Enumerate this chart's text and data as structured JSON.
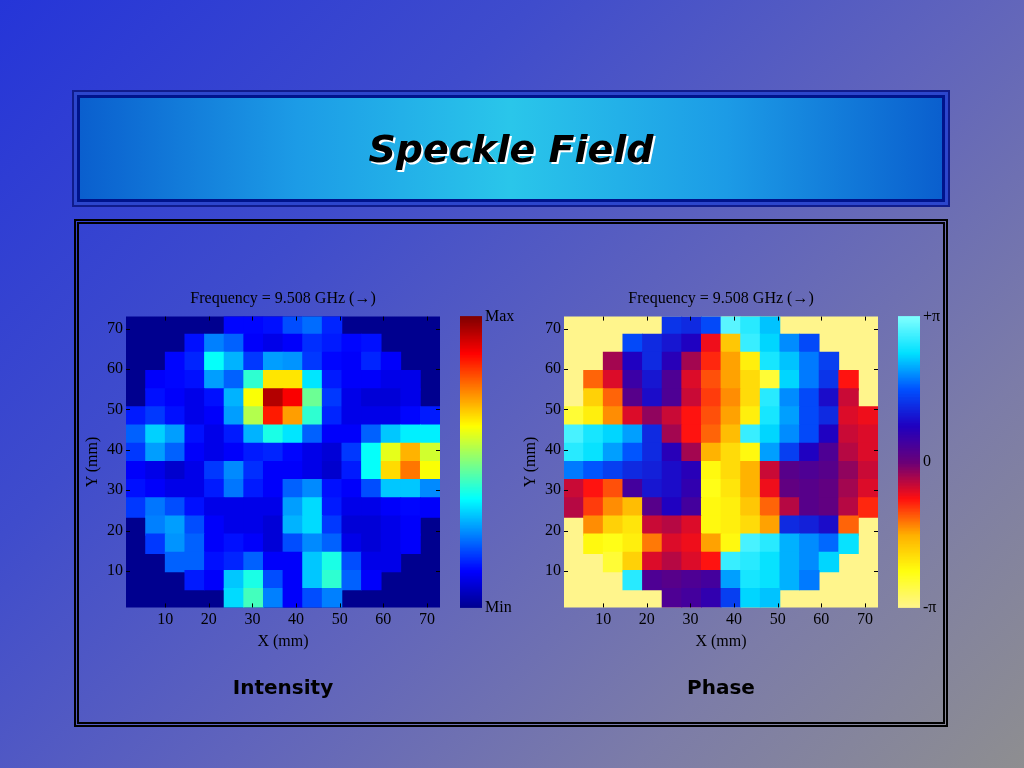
{
  "chart_data": [
    {
      "type": "other",
      "title": "Speckle Field"
    },
    {
      "type": "heatmap",
      "title": "Frequency = 9.508 GHz (→)",
      "xlabel": "X (mm)",
      "ylabel": "Y (mm)",
      "annotations": [
        "Intensity"
      ],
      "xlim": [
        1,
        73
      ],
      "ylim": [
        1,
        73
      ],
      "xticks": [
        10,
        20,
        30,
        40,
        50,
        60,
        70
      ],
      "yticks": [
        10,
        20,
        30,
        40,
        50,
        60,
        70
      ],
      "clim": [
        0,
        1
      ],
      "cticks": [
        {
          "value": 0,
          "label": "Min"
        },
        {
          "value": 1,
          "label": "Max"
        }
      ],
      "colors": [
        "#00008f",
        "#0000ff",
        "#0080ff",
        "#00ffff",
        "#80ff80",
        "#ffff00",
        "#ff8000",
        "#ff0000",
        "#800000"
      ],
      "cells": [
        [
          null,
          null,
          null,
          null,
          null,
          0.13,
          0.13,
          0.14,
          0.2,
          0.23,
          0.16,
          null,
          null,
          null,
          null,
          null
        ],
        [
          null,
          null,
          null,
          0.14,
          0.25,
          0.22,
          0.12,
          0.1,
          0.12,
          0.17,
          0.15,
          0.13,
          0.14,
          null,
          null,
          null
        ],
        [
          null,
          null,
          0.13,
          0.16,
          0.38,
          0.3,
          0.18,
          0.28,
          0.27,
          0.18,
          0.13,
          0.12,
          0.16,
          0.12,
          null,
          null
        ],
        [
          null,
          0.12,
          0.13,
          0.14,
          0.28,
          0.22,
          0.42,
          0.65,
          0.65,
          0.35,
          0.15,
          0.12,
          0.12,
          0.1,
          0.1,
          null
        ],
        [
          null,
          0.14,
          0.12,
          0.1,
          0.14,
          0.3,
          0.62,
          0.95,
          0.88,
          0.48,
          0.18,
          0.1,
          0.08,
          0.08,
          0.1,
          null
        ],
        [
          0.15,
          0.18,
          0.14,
          0.1,
          0.12,
          0.28,
          0.55,
          0.85,
          0.72,
          0.42,
          0.16,
          0.1,
          0.1,
          0.1,
          0.13,
          0.15
        ],
        [
          0.22,
          0.33,
          0.28,
          0.14,
          0.1,
          0.15,
          0.3,
          0.4,
          0.35,
          0.22,
          0.12,
          0.12,
          0.22,
          0.32,
          0.36,
          0.36
        ],
        [
          0.18,
          0.28,
          0.22,
          0.12,
          0.1,
          0.12,
          0.15,
          0.16,
          0.13,
          0.1,
          0.08,
          0.18,
          0.38,
          0.6,
          0.7,
          0.58
        ],
        [
          0.12,
          0.1,
          0.07,
          0.1,
          0.18,
          0.26,
          0.17,
          0.12,
          0.12,
          0.1,
          0.07,
          0.15,
          0.38,
          0.66,
          0.76,
          0.62
        ],
        [
          0.14,
          0.12,
          0.1,
          0.1,
          0.15,
          0.24,
          0.15,
          0.12,
          0.22,
          0.26,
          0.14,
          0.12,
          0.2,
          0.32,
          0.32,
          0.26
        ],
        [
          0.18,
          0.24,
          0.2,
          0.14,
          0.1,
          0.1,
          0.1,
          0.1,
          0.28,
          0.34,
          0.15,
          0.1,
          0.1,
          0.12,
          0.13,
          0.12
        ],
        [
          null,
          0.25,
          0.28,
          0.2,
          0.12,
          0.1,
          0.1,
          0.08,
          0.3,
          0.34,
          0.18,
          0.08,
          0.08,
          0.1,
          0.12,
          null
        ],
        [
          null,
          0.18,
          0.27,
          0.22,
          0.12,
          0.14,
          0.12,
          0.08,
          0.2,
          0.26,
          0.22,
          0.1,
          0.08,
          0.1,
          0.12,
          null
        ],
        [
          null,
          null,
          0.22,
          0.22,
          0.14,
          0.16,
          0.22,
          0.12,
          0.12,
          0.32,
          0.4,
          0.2,
          0.1,
          0.1,
          null,
          null
        ],
        [
          null,
          null,
          null,
          0.15,
          0.12,
          0.32,
          0.4,
          0.2,
          0.12,
          0.32,
          0.42,
          0.22,
          0.12,
          null,
          null,
          null
        ],
        [
          null,
          null,
          null,
          null,
          null,
          0.34,
          0.44,
          0.25,
          0.12,
          0.2,
          0.25,
          null,
          null,
          null,
          null,
          null
        ]
      ]
    },
    {
      "type": "heatmap",
      "title": "Frequency = 9.508 GHz (→)",
      "xlabel": "X (mm)",
      "ylabel": "Y (mm)",
      "annotations": [
        "Phase"
      ],
      "xlim": [
        1,
        73
      ],
      "ylim": [
        1,
        73
      ],
      "xticks": [
        10,
        20,
        30,
        40,
        50,
        60,
        70
      ],
      "yticks": [
        10,
        20,
        30,
        40,
        50,
        60,
        70
      ],
      "clim": [
        -3.1416,
        3.1416
      ],
      "cticks": [
        {
          "value": -3.1416,
          "label": "-π"
        },
        0,
        {
          "value": 3.1416,
          "label": "+π"
        }
      ],
      "colors": [
        "#fff58c",
        "#ffff10",
        "#ffb000",
        "#ff1010",
        "#6a0078",
        "#2000c0",
        "#0050ff",
        "#00e0ff",
        "#80ffff"
      ],
      "cells": [
        [
          null,
          null,
          null,
          null,
          null,
          1.3,
          1.2,
          1.5,
          2.9,
          2.6,
          2.2,
          null,
          null,
          null,
          null,
          null
        ],
        [
          null,
          null,
          null,
          1.5,
          1.2,
          1.0,
          0.8,
          -0.7,
          -1.8,
          2.7,
          2.3,
          1.9,
          1.5,
          null,
          null,
          null
        ],
        [
          null,
          null,
          -0.3,
          0.8,
          1.2,
          0.7,
          -0.3,
          -0.9,
          -1.5,
          -2.2,
          2.5,
          2.2,
          1.8,
          1.4,
          null,
          null
        ],
        [
          null,
          -1.2,
          -0.6,
          0.5,
          1.0,
          0.3,
          -0.6,
          -1.1,
          -1.5,
          -2.0,
          -2.6,
          2.3,
          1.8,
          1.3,
          -0.8,
          null
        ],
        [
          null,
          -1.9,
          -1.2,
          0.2,
          0.9,
          0.3,
          -0.5,
          -1.0,
          -1.4,
          -2.0,
          2.6,
          1.9,
          1.5,
          0.9,
          -0.5,
          null
        ],
        [
          -2.6,
          -2.2,
          -1.4,
          -0.6,
          -0.2,
          -0.5,
          -0.8,
          -1.1,
          -1.5,
          -2.2,
          2.5,
          2.0,
          1.5,
          1.2,
          -0.6,
          -0.7
        ],
        [
          2.8,
          2.5,
          2.3,
          2.0,
          1.2,
          -0.3,
          -0.8,
          -1.2,
          -1.7,
          2.7,
          2.3,
          1.9,
          1.5,
          0.8,
          -0.5,
          -0.6
        ],
        [
          2.6,
          2.4,
          2.0,
          1.6,
          1.2,
          0.7,
          -0.3,
          -1.6,
          -2.0,
          -2.3,
          2.0,
          1.4,
          0.8,
          0.3,
          -0.4,
          -0.6
        ],
        [
          1.8,
          1.6,
          1.4,
          1.2,
          1.1,
          0.9,
          0.7,
          -2.3,
          -2.0,
          -1.6,
          -0.5,
          0.2,
          0.3,
          0.2,
          -0.2,
          -0.5
        ],
        [
          -0.5,
          -0.8,
          -1.1,
          0.4,
          1.0,
          0.9,
          0.6,
          -2.4,
          -2.1,
          -1.6,
          -0.7,
          0.1,
          0.2,
          0.1,
          -0.3,
          -0.6
        ],
        [
          -0.4,
          -1.0,
          -1.4,
          -1.7,
          0.2,
          0.8,
          0.4,
          -2.3,
          -2.2,
          -1.8,
          -1.2,
          -0.4,
          0.2,
          0.1,
          -0.4,
          -0.9
        ],
        [
          null,
          -1.4,
          -1.9,
          -2.1,
          -0.5,
          -0.4,
          -0.6,
          -2.3,
          -2.2,
          -2.0,
          -1.5,
          1.2,
          1.1,
          0.9,
          -1.2,
          null
        ],
        [
          null,
          -2.3,
          -2.4,
          -2.2,
          -1.3,
          -0.6,
          -0.7,
          -1.5,
          -2.3,
          2.8,
          2.6,
          2.1,
          1.9,
          1.7,
          2.4,
          null
        ],
        [
          null,
          null,
          -2.6,
          -1.9,
          -0.6,
          -0.4,
          -0.6,
          -0.8,
          2.7,
          2.6,
          2.4,
          2.1,
          1.9,
          2.3,
          null,
          null
        ],
        [
          null,
          null,
          null,
          2.6,
          0.3,
          0.2,
          0.3,
          0.4,
          2.0,
          2.5,
          2.4,
          2.1,
          1.8,
          null,
          null,
          null
        ],
        [
          null,
          null,
          null,
          null,
          null,
          0.3,
          0.4,
          0.6,
          1.4,
          2.3,
          2.2,
          null,
          null,
          null,
          null,
          null
        ]
      ]
    }
  ]
}
